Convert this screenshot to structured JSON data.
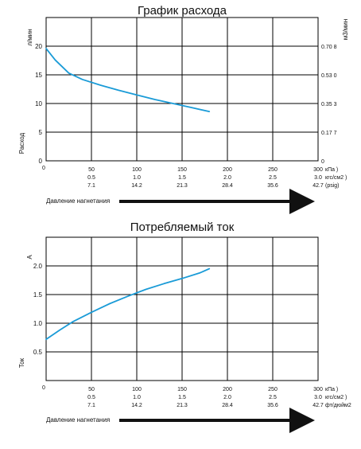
{
  "colors": {
    "curve": "#1a9bd7",
    "grid": "#000000",
    "text": "#111111",
    "arrow": "#111111"
  },
  "chart_data": [
    {
      "type": "line",
      "title": "График расхода",
      "ylabel": "Расход",
      "ylabel_unit": "л/мин",
      "y2label_unit": "м3/мин",
      "xlabel": "Давление нагнетания",
      "xlim": [
        0,
        300
      ],
      "ylim": [
        0,
        25
      ],
      "x_ticks": [
        0,
        50,
        100,
        150,
        200,
        250,
        300
      ],
      "y_ticks": [
        0,
        5,
        10,
        15,
        20
      ],
      "y_tick_labels": [
        "0",
        "5",
        "10",
        "15",
        "20"
      ],
      "y2_tick_labels": [
        "0",
        "0.17 7",
        "0.35 3",
        "0.53 0",
        "0.70 8"
      ],
      "x_tick_rows": [
        {
          "values": [
            "50",
            "100",
            "150",
            "200",
            "250",
            "300"
          ],
          "unit": "кПа )"
        },
        {
          "values": [
            "0.5",
            "1.0",
            "1.5",
            "2.0",
            "2.5",
            "3.0"
          ],
          "unit": "кгс/см2 )"
        },
        {
          "values": [
            "7.1",
            "14.2",
            "21.3",
            "28.4",
            "35.6",
            "42.7"
          ],
          "unit": "(psig)"
        }
      ],
      "grid": true,
      "series": [
        {
          "x": [
            0,
            10,
            25,
            40,
            60,
            80,
            100,
            120,
            140,
            160,
            180
          ],
          "y": [
            19.6,
            17.6,
            15.3,
            14.2,
            13.2,
            12.3,
            11.5,
            10.7,
            10.0,
            9.3,
            8.6
          ]
        }
      ]
    },
    {
      "type": "line",
      "title": "Потребляемый ток",
      "ylabel": "Ток",
      "ylabel_unit": "A",
      "xlabel": "Давление нагнетания",
      "xlim": [
        0,
        300
      ],
      "ylim": [
        0,
        2.5
      ],
      "x_ticks": [
        0,
        50,
        100,
        150,
        200,
        250,
        300
      ],
      "y_ticks": [
        0,
        0.5,
        1.0,
        1.5,
        2.0
      ],
      "y_tick_labels": [
        "",
        "0.5",
        "1.0",
        "1.5",
        "2.0"
      ],
      "x_tick_rows": [
        {
          "values": [
            "50",
            "100",
            "150",
            "200",
            "250",
            "300"
          ],
          "unit": "кПа )"
        },
        {
          "values": [
            "0.5",
            "1.0",
            "1.5",
            "2.0",
            "2.5",
            "3.0"
          ],
          "unit": "кгс/см2 )"
        },
        {
          "values": [
            "7.1",
            "14.2",
            "21.3",
            "28.4",
            "35.6",
            "42.7"
          ],
          "unit": "фт/дюйм2"
        }
      ],
      "grid": true,
      "series": [
        {
          "x": [
            0,
            15,
            30,
            50,
            70,
            90,
            110,
            130,
            150,
            170,
            180
          ],
          "y": [
            0.72,
            0.88,
            1.03,
            1.19,
            1.34,
            1.47,
            1.59,
            1.69,
            1.78,
            1.88,
            1.95
          ]
        }
      ]
    }
  ]
}
